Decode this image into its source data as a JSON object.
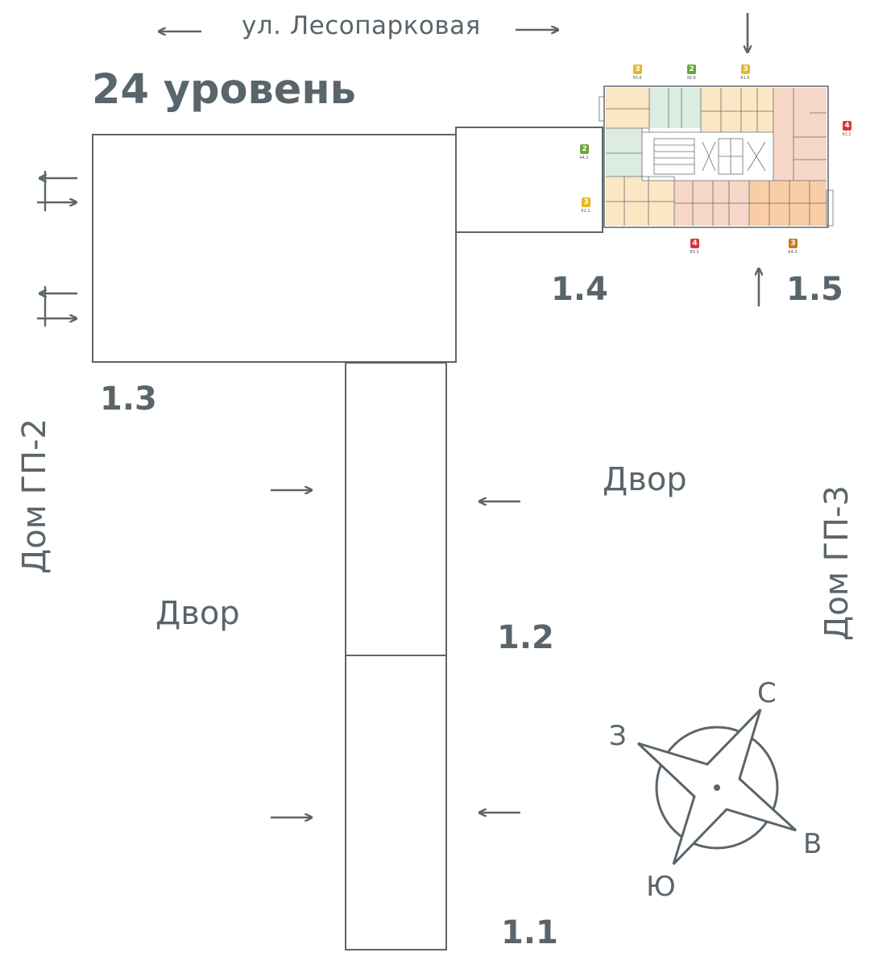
{
  "street": "ул. Лесопарковая",
  "level_title": "24 уровень",
  "sections": {
    "s1_1": "1.1",
    "s1_2": "1.2",
    "s1_3": "1.3",
    "s1_4": "1.4",
    "s1_5": "1.5"
  },
  "yards": {
    "left": "Двор",
    "right": "Двор"
  },
  "houses": {
    "gp2": "Дом ГП-2",
    "gp3": "Дом ГП-3"
  },
  "compass": {
    "north": "С",
    "west": "З",
    "east": "В",
    "south": "Ю"
  },
  "apartments": [
    {
      "rooms": "3",
      "area": "55.6",
      "color": "#e8b820"
    },
    {
      "rooms": "2",
      "area": "38.9",
      "color": "#6aa832"
    },
    {
      "rooms": "3",
      "area": "61.6",
      "color": "#e8b820"
    },
    {
      "rooms": "4",
      "area": "91.1",
      "color": "#d9363e"
    },
    {
      "rooms": "2",
      "area": "44.2",
      "color": "#6aa832"
    },
    {
      "rooms": "3",
      "area": "61.1",
      "color": "#e8b820"
    },
    {
      "rooms": "4",
      "area": "85.3",
      "color": "#d9363e"
    },
    {
      "rooms": "3",
      "area": "64.3",
      "color": "#c87a1e"
    }
  ],
  "colors": {
    "line": "#5a656b",
    "room_yellow": "#fbe7c4",
    "room_green": "#dcece0",
    "room_pink": "#f7d7c7",
    "room_orange": "#f9cda6"
  }
}
